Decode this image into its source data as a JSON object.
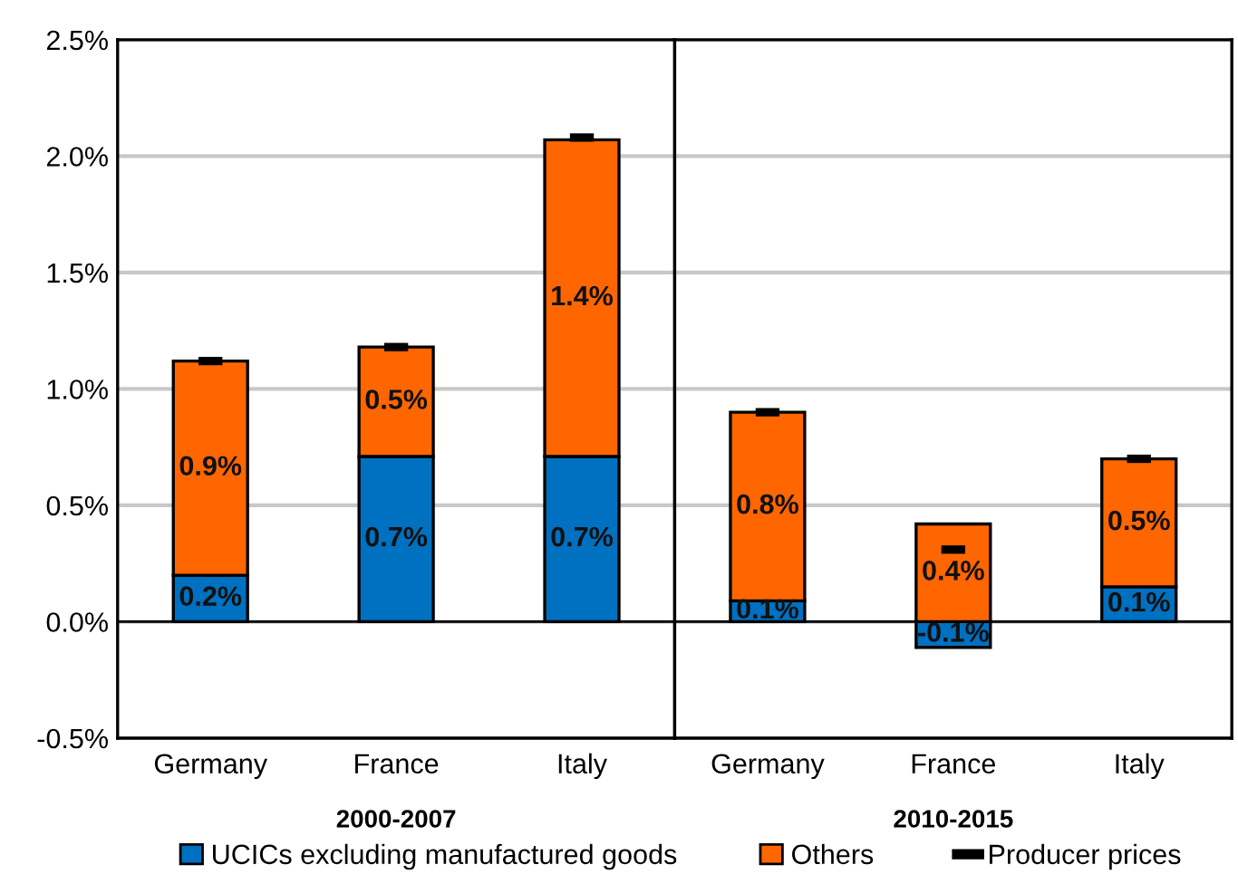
{
  "chart_data": [
    {
      "type": "bar",
      "stacked": true,
      "xlabel": "2000-2007",
      "categories": [
        "Germany",
        "France",
        "Italy"
      ],
      "series": [
        {
          "name": "UCICs excluding manufactured goods",
          "color": "#0070c0",
          "values": [
            0.2,
            0.71,
            0.71
          ],
          "value_labels": [
            "0.2%",
            "0.7%",
            "0.7%"
          ]
        },
        {
          "name": "Others",
          "color": "#ff6600",
          "values": [
            0.92,
            0.47,
            1.36
          ],
          "value_labels": [
            "0.9%",
            "0.5%",
            "1.4%"
          ]
        },
        {
          "name": "Producer prices",
          "type": "scatter",
          "color": "#000000",
          "values": [
            1.12,
            1.18,
            2.08
          ]
        }
      ],
      "ylim": [
        -0.5,
        2.5
      ],
      "yticks": [
        {
          "value": -0.5,
          "label": "-0.5%"
        },
        {
          "value": 0,
          "label": "0.0%"
        },
        {
          "value": 0.5,
          "label": "0.5%"
        },
        {
          "value": 1,
          "label": "1.0%"
        },
        {
          "value": 1.5,
          "label": "1.5%"
        },
        {
          "value": 2,
          "label": "2.0%"
        },
        {
          "value": 2.5,
          "label": "2.5%"
        }
      ],
      "grid": "y",
      "legend": "bottom"
    },
    {
      "type": "bar",
      "stacked": true,
      "xlabel": "2010-2015",
      "categories": [
        "Germany",
        "France",
        "Italy"
      ],
      "series": [
        {
          "color": "#0070c0",
          "values": [
            0.09,
            -0.11,
            0.15
          ],
          "value_labels": [
            "0.1%",
            "-0.1%",
            "0.1%"
          ]
        },
        {
          "color": "#ff6600",
          "values": [
            0.81,
            0.42,
            0.55
          ],
          "value_labels": [
            "0.8%",
            "0.4%",
            "0.5%"
          ]
        },
        {
          "type": "scatter",
          "color": "#000000",
          "values": [
            0.9,
            0.31,
            0.7
          ]
        }
      ],
      "ylim": [
        -0.5,
        2.5
      ],
      "yticks": [
        -0.5,
        0,
        0.5,
        1,
        1.5,
        2,
        2.5
      ],
      "tick_labels": "x",
      "grid": "y"
    }
  ]
}
